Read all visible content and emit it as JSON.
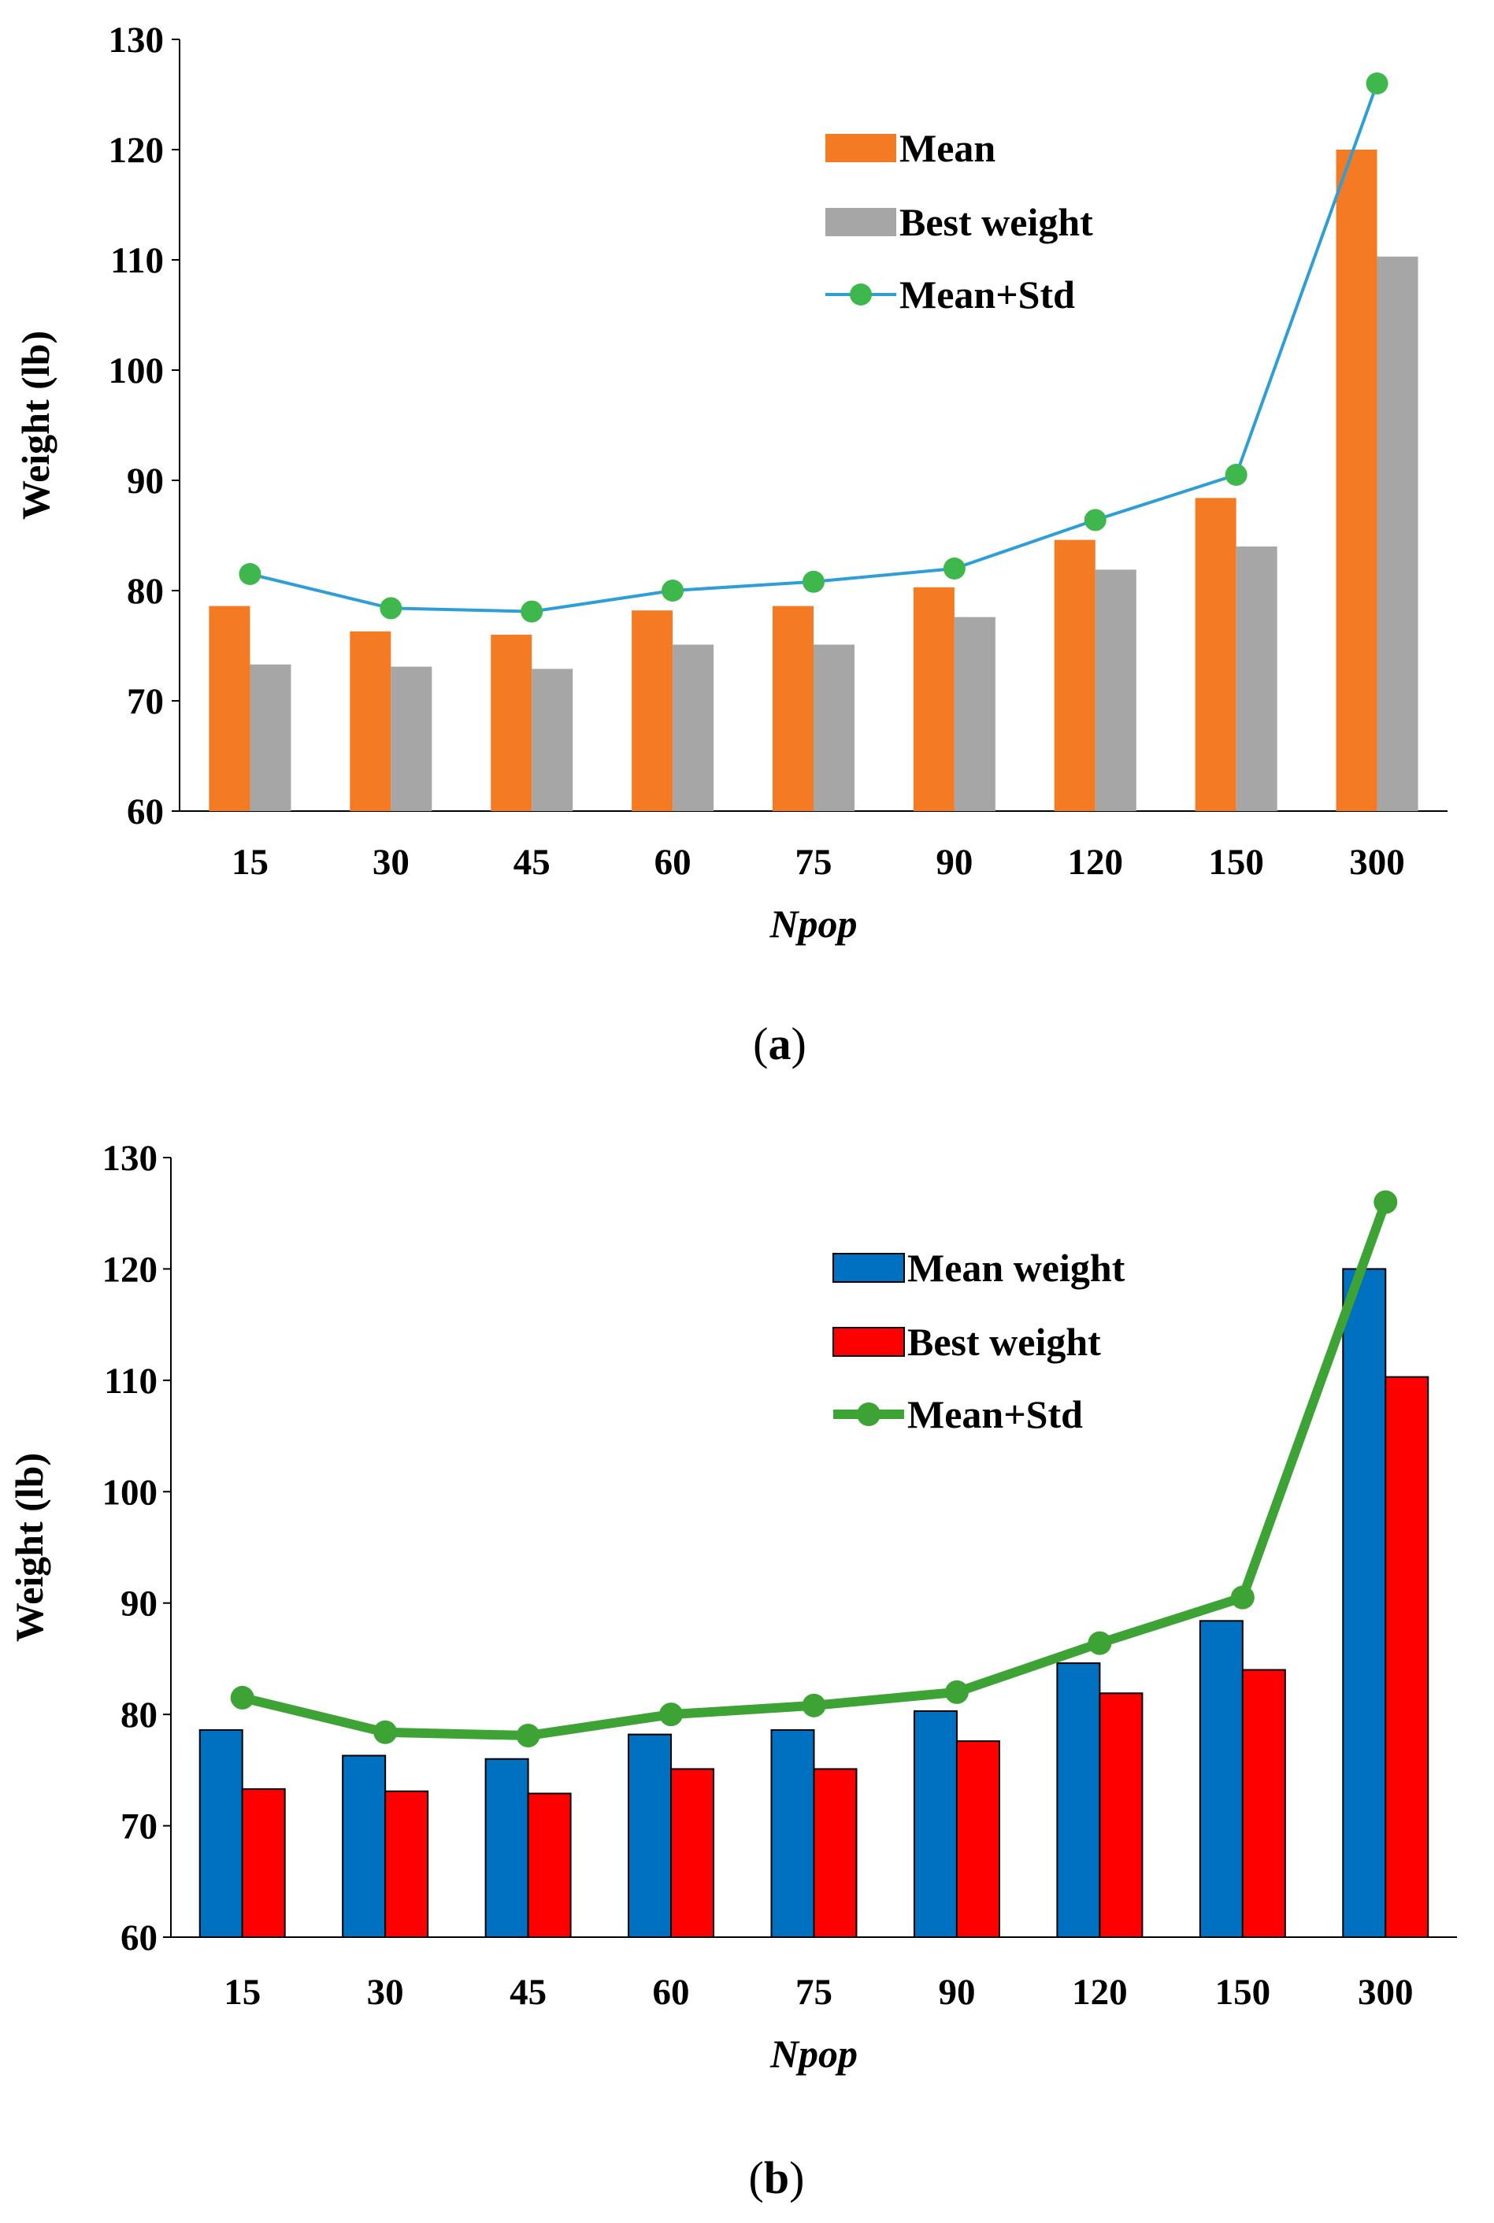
{
  "chart_data": [
    {
      "type": "bar",
      "panel": "(a)",
      "panel_letter": "a",
      "categories": [
        "15",
        "30",
        "45",
        "60",
        "75",
        "90",
        "120",
        "150",
        "300"
      ],
      "series": [
        {
          "name": "Mean",
          "kind": "bar",
          "color": "#F47A24",
          "values": [
            78.6,
            76.3,
            76.0,
            78.2,
            78.6,
            80.3,
            84.6,
            88.4,
            120.0
          ]
        },
        {
          "name": "Best weight",
          "kind": "bar",
          "color": "#A6A6A6",
          "values": [
            73.3,
            73.1,
            72.9,
            75.1,
            75.1,
            77.6,
            81.9,
            84.0,
            110.3
          ]
        },
        {
          "name": "Mean+Std",
          "kind": "line",
          "color": "#2E9FD6",
          "marker_color": "#3EB74C",
          "values": [
            81.5,
            78.4,
            78.1,
            80.0,
            80.8,
            82.0,
            86.4,
            90.5,
            126.0
          ]
        }
      ],
      "bar_outline": false,
      "xlabel": "Npop",
      "ylabel": "Weight (lb)",
      "ylim": [
        60,
        130
      ],
      "yticks": [
        "60",
        "70",
        "80",
        "90",
        "100",
        "110",
        "120",
        "130"
      ],
      "legend": "top-right",
      "grid": false
    },
    {
      "type": "bar",
      "panel": "(b)",
      "panel_letter": "b",
      "categories": [
        "15",
        "30",
        "45",
        "60",
        "75",
        "90",
        "120",
        "150",
        "300"
      ],
      "series": [
        {
          "name": "Mean weight",
          "kind": "bar",
          "color": "#0070C0",
          "values": [
            78.6,
            76.3,
            76.0,
            78.2,
            78.6,
            80.3,
            84.6,
            88.4,
            120.0
          ]
        },
        {
          "name": "Best weight",
          "kind": "bar",
          "color": "#FF0000",
          "values": [
            73.3,
            73.1,
            72.9,
            75.1,
            75.1,
            77.6,
            81.9,
            84.0,
            110.3
          ]
        },
        {
          "name": "Mean+Std",
          "kind": "line",
          "color": "#3EA335",
          "marker_color": "#3EA335",
          "values": [
            81.5,
            78.4,
            78.1,
            80.0,
            80.8,
            82.0,
            86.4,
            90.5,
            126.0
          ]
        }
      ],
      "bar_outline": true,
      "xlabel": "Npop",
      "ylabel": "Weight (lb)",
      "ylim": [
        60,
        130
      ],
      "yticks": [
        "60",
        "70",
        "80",
        "90",
        "100",
        "110",
        "120",
        "130"
      ],
      "legend": "top-right",
      "grid": false
    }
  ]
}
